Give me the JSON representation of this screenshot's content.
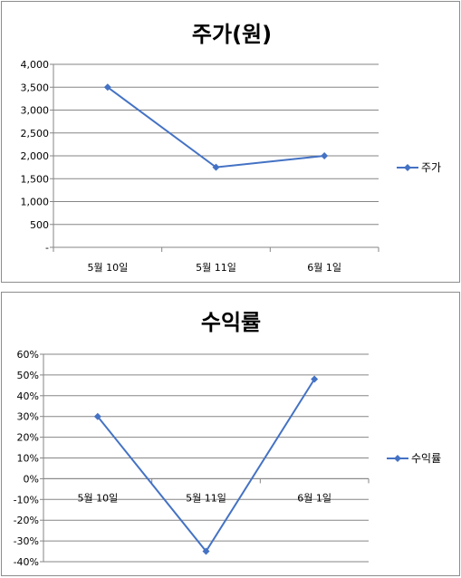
{
  "chart_data": [
    {
      "type": "line",
      "title": "주가(원)",
      "categories": [
        "5월 10일",
        "5월 11일",
        "6월 1일"
      ],
      "series": [
        {
          "name": "주가",
          "values": [
            3500,
            1750,
            2000
          ]
        }
      ],
      "y_ticks": [
        "-",
        "500",
        "1,000",
        "1,500",
        "2,000",
        "2,500",
        "3,000",
        "3,500",
        "4,000"
      ],
      "ylim": [
        0,
        4000
      ],
      "grid": true,
      "legend": "right",
      "color": "#4472C4"
    },
    {
      "type": "line",
      "title": "수익률",
      "categories": [
        "5월 10일",
        "5월 11일",
        "6월 1일"
      ],
      "series": [
        {
          "name": "수익률",
          "values": [
            30,
            -35,
            48
          ]
        }
      ],
      "y_ticks": [
        "-40%",
        "-30%",
        "-20%",
        "-10%",
        "0%",
        "10%",
        "20%",
        "30%",
        "40%",
        "50%",
        "60%"
      ],
      "ylim": [
        -40,
        60
      ],
      "grid": true,
      "legend": "right",
      "color": "#4472C4"
    }
  ]
}
